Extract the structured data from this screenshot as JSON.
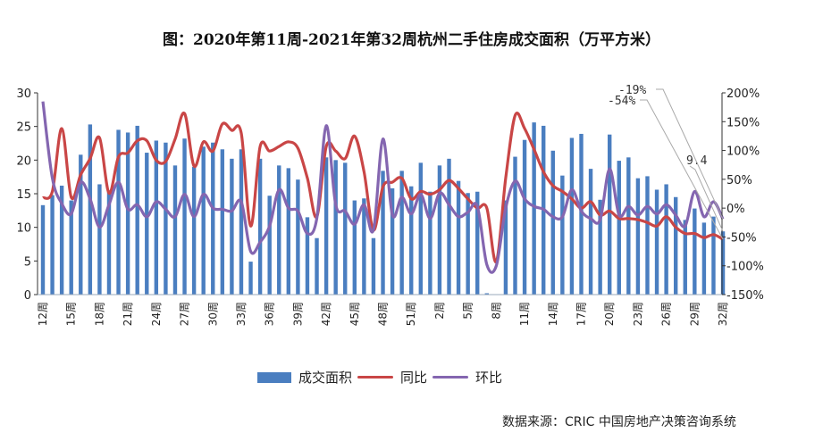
{
  "title": "图：2020年第11周-2021年第32周杭州二手住房成交面积（万平方米）",
  "source": "数据来源：CRIC 中国房地产决策咨询系统",
  "colors": {
    "bar": "#4a7ec0",
    "yoy": "#c94646",
    "mom": "#8466b0"
  },
  "chart_data": {
    "type": "bar+line",
    "title": "图：2020年第11周-2021年第32周杭州二手住房成交面积（万平方米）",
    "categories": [
      "12周",
      "13周",
      "14周",
      "15周",
      "16周",
      "17周",
      "18周",
      "19周",
      "20周",
      "21周",
      "22周",
      "23周",
      "24周",
      "25周",
      "26周",
      "27周",
      "28周",
      "29周",
      "30周",
      "31周",
      "32周",
      "33周",
      "34周",
      "35周",
      "36周",
      "37周",
      "38周",
      "39周",
      "40周",
      "41周",
      "42周",
      "43周",
      "44周",
      "45周",
      "46周",
      "47周",
      "48周",
      "49周",
      "50周",
      "51周",
      "52周",
      "1周",
      "2周",
      "3周",
      "4周",
      "5周",
      "6周",
      "7周",
      "8周",
      "9周",
      "10周",
      "11周",
      "12周",
      "13周",
      "14周",
      "15周",
      "16周",
      "17周",
      "18周",
      "19周",
      "20周",
      "21周",
      "22周",
      "23周",
      "24周",
      "25周",
      "26周",
      "27周",
      "28周",
      "29周",
      "30周",
      "31周",
      "32周"
    ],
    "tick_every": 3,
    "series": [
      {
        "name": "成交面积",
        "type": "bar",
        "axis": "left",
        "values": [
          13.3,
          14.8,
          16.2,
          14.0,
          20.8,
          25.3,
          16.4,
          15.5,
          24.5,
          24.1,
          25.1,
          21.1,
          22.9,
          22.6,
          19.2,
          23.2,
          19.0,
          22.0,
          22.6,
          21.6,
          20.2,
          21.6,
          4.9,
          20.2,
          14.7,
          19.2,
          18.8,
          17.1,
          11.5,
          8.4,
          20.4,
          20.0,
          19.6,
          14.0,
          14.3,
          8.4,
          18.4,
          15.8,
          18.4,
          16.1,
          19.6,
          15.3,
          19.2,
          20.2,
          16.9,
          15.1,
          15.3,
          0.2,
          0,
          14.0,
          20.5,
          23.0,
          25.6,
          25.1,
          21.4,
          17.7,
          23.3,
          23.9,
          18.7,
          14.1,
          23.8,
          19.9,
          20.4,
          17.3,
          17.6,
          15.6,
          16.4,
          14.5,
          11.1,
          12.8,
          10.7,
          11.6,
          9.4
        ]
      },
      {
        "name": "同比",
        "type": "line",
        "axis": "right",
        "values": [
          18,
          29,
          138,
          19,
          58,
          86,
          122,
          26,
          89,
          96,
          117,
          117,
          83,
          81,
          120,
          164,
          73,
          115,
          99,
          146,
          135,
          130,
          -31,
          107,
          99,
          107,
          115,
          104,
          52,
          -15,
          107,
          99,
          86,
          125,
          63,
          -38,
          37,
          45,
          52,
          16,
          29,
          24,
          32,
          48,
          34,
          16,
          0,
          0,
          -93,
          52,
          161,
          138,
          102,
          63,
          39,
          29,
          16,
          0,
          11,
          -12,
          -5,
          -18,
          -18,
          -20,
          -25,
          -31,
          -15,
          -33,
          -44,
          -44,
          -51,
          -46,
          -54
        ]
      },
      {
        "name": "环比",
        "type": "line",
        "axis": "right",
        "values": [
          185,
          52,
          8,
          -10,
          45,
          16,
          -33,
          6,
          45,
          -2,
          6,
          -15,
          11,
          -2,
          -15,
          24,
          -15,
          24,
          0,
          -2,
          -5,
          11,
          -75,
          -59,
          -31,
          32,
          0,
          -5,
          -44,
          -18,
          143,
          6,
          -5,
          -28,
          6,
          -38,
          120,
          -12,
          19,
          -10,
          24,
          -18,
          26,
          6,
          -15,
          -7,
          3,
          -98,
          -100,
          0,
          47,
          16,
          3,
          -2,
          -15,
          -15,
          32,
          -5,
          -18,
          -20,
          68,
          -12,
          3,
          -12,
          3,
          -10,
          6,
          -12,
          -31,
          29,
          -15,
          11,
          -19
        ]
      }
    ],
    "left_axis": {
      "range": [
        0,
        30
      ],
      "ticks": [
        "0",
        "5",
        "10",
        "15",
        "20",
        "25",
        "30"
      ]
    },
    "right_axis": {
      "range": [
        -150,
        200
      ],
      "ticks": [
        "-150%",
        "-100%",
        "-50%",
        "0%",
        "50%",
        "100%",
        "150%",
        "200%"
      ]
    },
    "annotations": {
      "bar_last": "9.4",
      "yoy_last": "-54%",
      "mom_last": "-19%"
    },
    "legend": {
      "position": "bottom",
      "items": [
        "成交面积",
        "同比",
        "环比"
      ]
    },
    "grid": false
  }
}
